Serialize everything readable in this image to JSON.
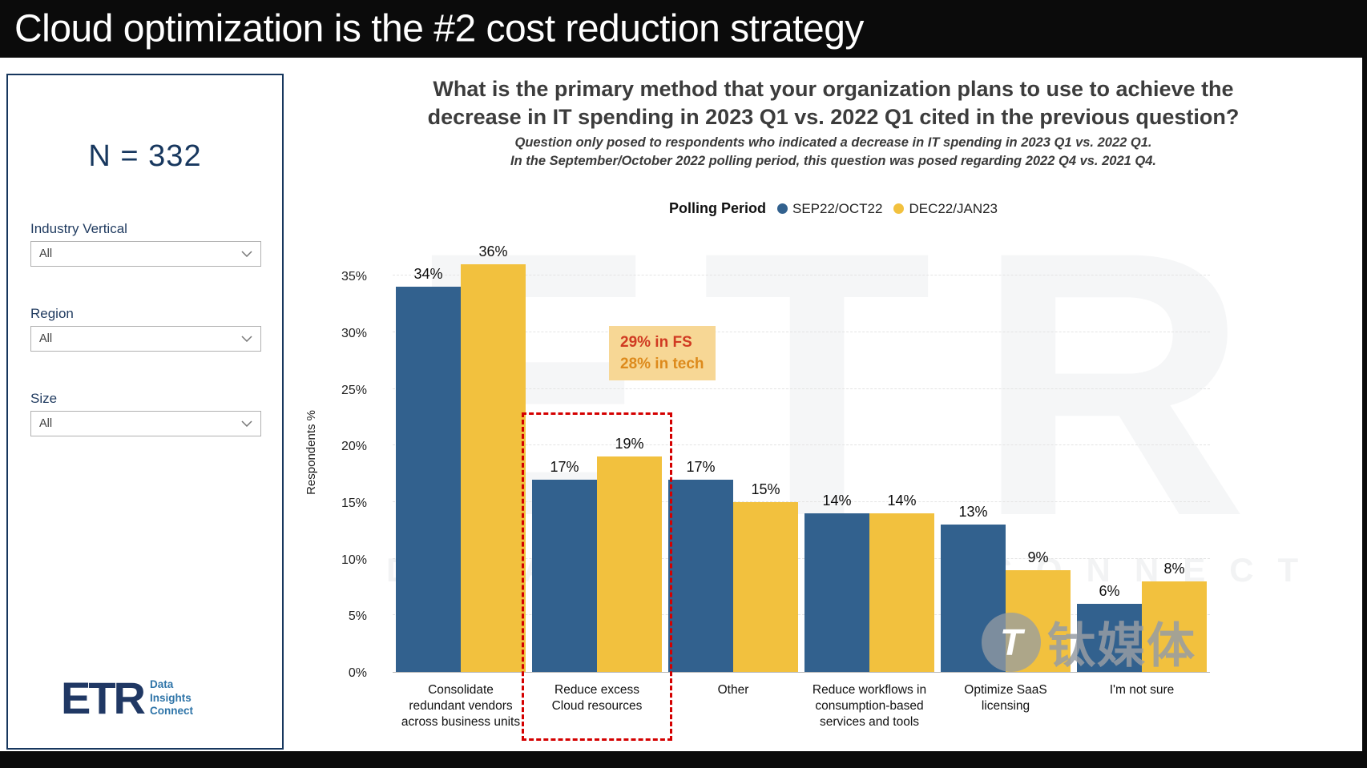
{
  "banner": {
    "title": "Cloud optimization is the #2 cost reduction strategy"
  },
  "sidebar": {
    "sample_size": "N = 332",
    "filters": [
      {
        "label": "Industry Vertical",
        "value": "All"
      },
      {
        "label": "Region",
        "value": "All"
      },
      {
        "label": "Size",
        "value": "All"
      }
    ],
    "logo": {
      "brand": "ETR",
      "tagline_lines": [
        "Data",
        "Insights",
        "Connect"
      ]
    }
  },
  "chart": {
    "title_lines": [
      "What is the primary method that your organization plans to use to achieve the",
      "decrease in IT spending in 2023 Q1 vs. 2022 Q1 cited in the previous question?"
    ],
    "subtitle_lines": [
      "Question only posed to respondents who indicated a decrease in IT spending in 2023 Q1 vs. 2022 Q1.",
      "In the September/October 2022 polling period, this question was posed regarding 2022 Q4 vs. 2021 Q4."
    ],
    "legend_title": "Polling Period",
    "annotation": {
      "lines": [
        "29% in FS",
        "28% in tech"
      ],
      "bg": "#f7d795",
      "colors": [
        "#d03a22",
        "#dd8a1c"
      ]
    },
    "highlight_color": "#d40000"
  },
  "chart_data": {
    "type": "bar",
    "categories": [
      "Consolidate redundant vendors across business units",
      "Reduce excess Cloud resources",
      "Other",
      "Reduce workflows in consumption-based services and tools",
      "Optimize SaaS licensing",
      "I'm not sure"
    ],
    "series": [
      {
        "name": "SEP22/OCT22",
        "color": "#32618e",
        "values": [
          34,
          17,
          17,
          14,
          13,
          6
        ]
      },
      {
        "name": "DEC22/JAN23",
        "color": "#f2c13e",
        "values": [
          36,
          19,
          15,
          14,
          9,
          8
        ]
      }
    ],
    "ylabel": "Respondents %",
    "ylim": [
      0,
      37.5
    ],
    "yticks": [
      0,
      5,
      10,
      15,
      20,
      25,
      30,
      35
    ],
    "ytick_suffix": "%",
    "grid": true,
    "legend_position": "top",
    "highlighted_category": "Reduce excess Cloud resources",
    "highlighted_category_index": 1
  },
  "watermarks": {
    "background_brand": "ETR",
    "background_tagline": "DATA INSIGHTS CONNECT",
    "corner_logo_glyph": "T",
    "corner_logo_text": "钛媒体"
  }
}
